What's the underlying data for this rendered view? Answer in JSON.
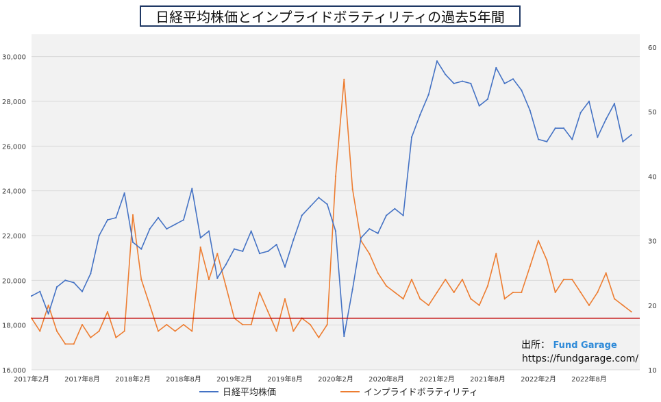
{
  "title": "日経平均株価とインプライドボラティリティの過去5年間",
  "credit": {
    "label": "出所：",
    "brand": "Fund Garage",
    "url": "https://fundgarage.com/"
  },
  "colors": {
    "nikkei": "#4472c4",
    "iv": "#ed7d31",
    "threshold": "#c00000",
    "plot_bg": "#f2f2f2",
    "grid": "#d9d9d9"
  },
  "chart_data": {
    "type": "line",
    "grid": true,
    "legend_position": "bottom",
    "x_tick_labels": [
      "2017年2月",
      "2017年8月",
      "2018年2月",
      "2018年8月",
      "2019年2月",
      "2019年8月",
      "2020年2月",
      "2020年8月",
      "2021年2月",
      "2021年8月",
      "2022年2月",
      "2022年8月"
    ],
    "x_range": [
      "2017-02",
      "2023-02"
    ],
    "y_left": {
      "ylim": [
        16000,
        31000
      ],
      "ticks": [
        16000,
        18000,
        20000,
        22000,
        24000,
        26000,
        28000,
        30000
      ],
      "tick_labels": [
        "16,000",
        "18,000",
        "20,000",
        "22,000",
        "24,000",
        "26,000",
        "28,000",
        "30,000"
      ]
    },
    "y_right": {
      "ylim": [
        10,
        62
      ],
      "ticks": [
        10,
        20,
        30,
        40,
        50,
        60
      ],
      "tick_labels": [
        "10",
        "20",
        "30",
        "40",
        "50",
        "60"
      ]
    },
    "reference_line": {
      "axis": "right",
      "value": 18
    },
    "series": [
      {
        "name": "日経平均株価",
        "axis": "left",
        "x": [
          "2017-02",
          "2017-03",
          "2017-04",
          "2017-05",
          "2017-06",
          "2017-07",
          "2017-08",
          "2017-09",
          "2017-10",
          "2017-11",
          "2017-12",
          "2018-01",
          "2018-02",
          "2018-03",
          "2018-04",
          "2018-05",
          "2018-06",
          "2018-07",
          "2018-08",
          "2018-09",
          "2018-10",
          "2018-11",
          "2018-12",
          "2019-01",
          "2019-02",
          "2019-03",
          "2019-04",
          "2019-05",
          "2019-06",
          "2019-07",
          "2019-08",
          "2019-09",
          "2019-10",
          "2019-11",
          "2019-12",
          "2020-01",
          "2020-02",
          "2020-03",
          "2020-04",
          "2020-05",
          "2020-06",
          "2020-07",
          "2020-08",
          "2020-09",
          "2020-10",
          "2020-11",
          "2020-12",
          "2021-01",
          "2021-02",
          "2021-03",
          "2021-04",
          "2021-05",
          "2021-06",
          "2021-07",
          "2021-08",
          "2021-09",
          "2021-10",
          "2021-11",
          "2021-12",
          "2022-01",
          "2022-02",
          "2022-03",
          "2022-04",
          "2022-05",
          "2022-06",
          "2022-07",
          "2022-08",
          "2022-09",
          "2022-10",
          "2022-11",
          "2022-12",
          "2023-01"
        ],
        "values": [
          19300,
          19500,
          18500,
          19700,
          20000,
          19900,
          19500,
          20300,
          22000,
          22700,
          22800,
          23900,
          21700,
          21400,
          22300,
          22800,
          22300,
          22500,
          22700,
          24100,
          21900,
          22200,
          20100,
          20700,
          21400,
          21300,
          22200,
          21200,
          21300,
          21600,
          20600,
          21800,
          22900,
          23300,
          23700,
          23400,
          22200,
          17500,
          19600,
          21900,
          22300,
          22100,
          22900,
          23200,
          22900,
          26400,
          27400,
          28300,
          29800,
          29200,
          28800,
          28900,
          28800,
          27800,
          28100,
          29500,
          28800,
          29000,
          28500,
          27600,
          26300,
          26200,
          26800,
          26800,
          26300,
          27500,
          28000,
          26400,
          27200,
          27900,
          26200,
          26500
        ]
      },
      {
        "name": "インプライドボラティリティ",
        "axis": "right",
        "x": [
          "2017-02",
          "2017-03",
          "2017-04",
          "2017-05",
          "2017-06",
          "2017-07",
          "2017-08",
          "2017-09",
          "2017-10",
          "2017-11",
          "2017-12",
          "2018-01",
          "2018-02",
          "2018-03",
          "2018-04",
          "2018-05",
          "2018-06",
          "2018-07",
          "2018-08",
          "2018-09",
          "2018-10",
          "2018-11",
          "2018-12",
          "2019-01",
          "2019-02",
          "2019-03",
          "2019-04",
          "2019-05",
          "2019-06",
          "2019-07",
          "2019-08",
          "2019-09",
          "2019-10",
          "2019-11",
          "2019-12",
          "2020-01",
          "2020-02",
          "2020-03",
          "2020-04",
          "2020-05",
          "2020-06",
          "2020-07",
          "2020-08",
          "2020-09",
          "2020-10",
          "2020-11",
          "2020-12",
          "2021-01",
          "2021-02",
          "2021-03",
          "2021-04",
          "2021-05",
          "2021-06",
          "2021-07",
          "2021-08",
          "2021-09",
          "2021-10",
          "2021-11",
          "2021-12",
          "2022-01",
          "2022-02",
          "2022-03",
          "2022-04",
          "2022-05",
          "2022-06",
          "2022-07",
          "2022-08",
          "2022-09",
          "2022-10",
          "2022-11",
          "2022-12",
          "2023-01"
        ],
        "values": [
          18,
          16,
          20,
          16,
          14,
          14,
          17,
          15,
          16,
          19,
          15,
          16,
          34,
          24,
          20,
          16,
          17,
          16,
          17,
          16,
          29,
          24,
          28,
          23,
          18,
          17,
          17,
          22,
          19,
          16,
          21,
          16,
          18,
          17,
          15,
          17,
          40,
          55,
          38,
          30,
          28,
          25,
          23,
          22,
          21,
          24,
          21,
          20,
          22,
          24,
          22,
          24,
          21,
          20,
          23,
          28,
          21,
          22,
          22,
          26,
          30,
          27,
          22,
          24,
          24,
          22,
          20,
          22,
          25,
          21,
          20,
          19
        ]
      }
    ]
  }
}
